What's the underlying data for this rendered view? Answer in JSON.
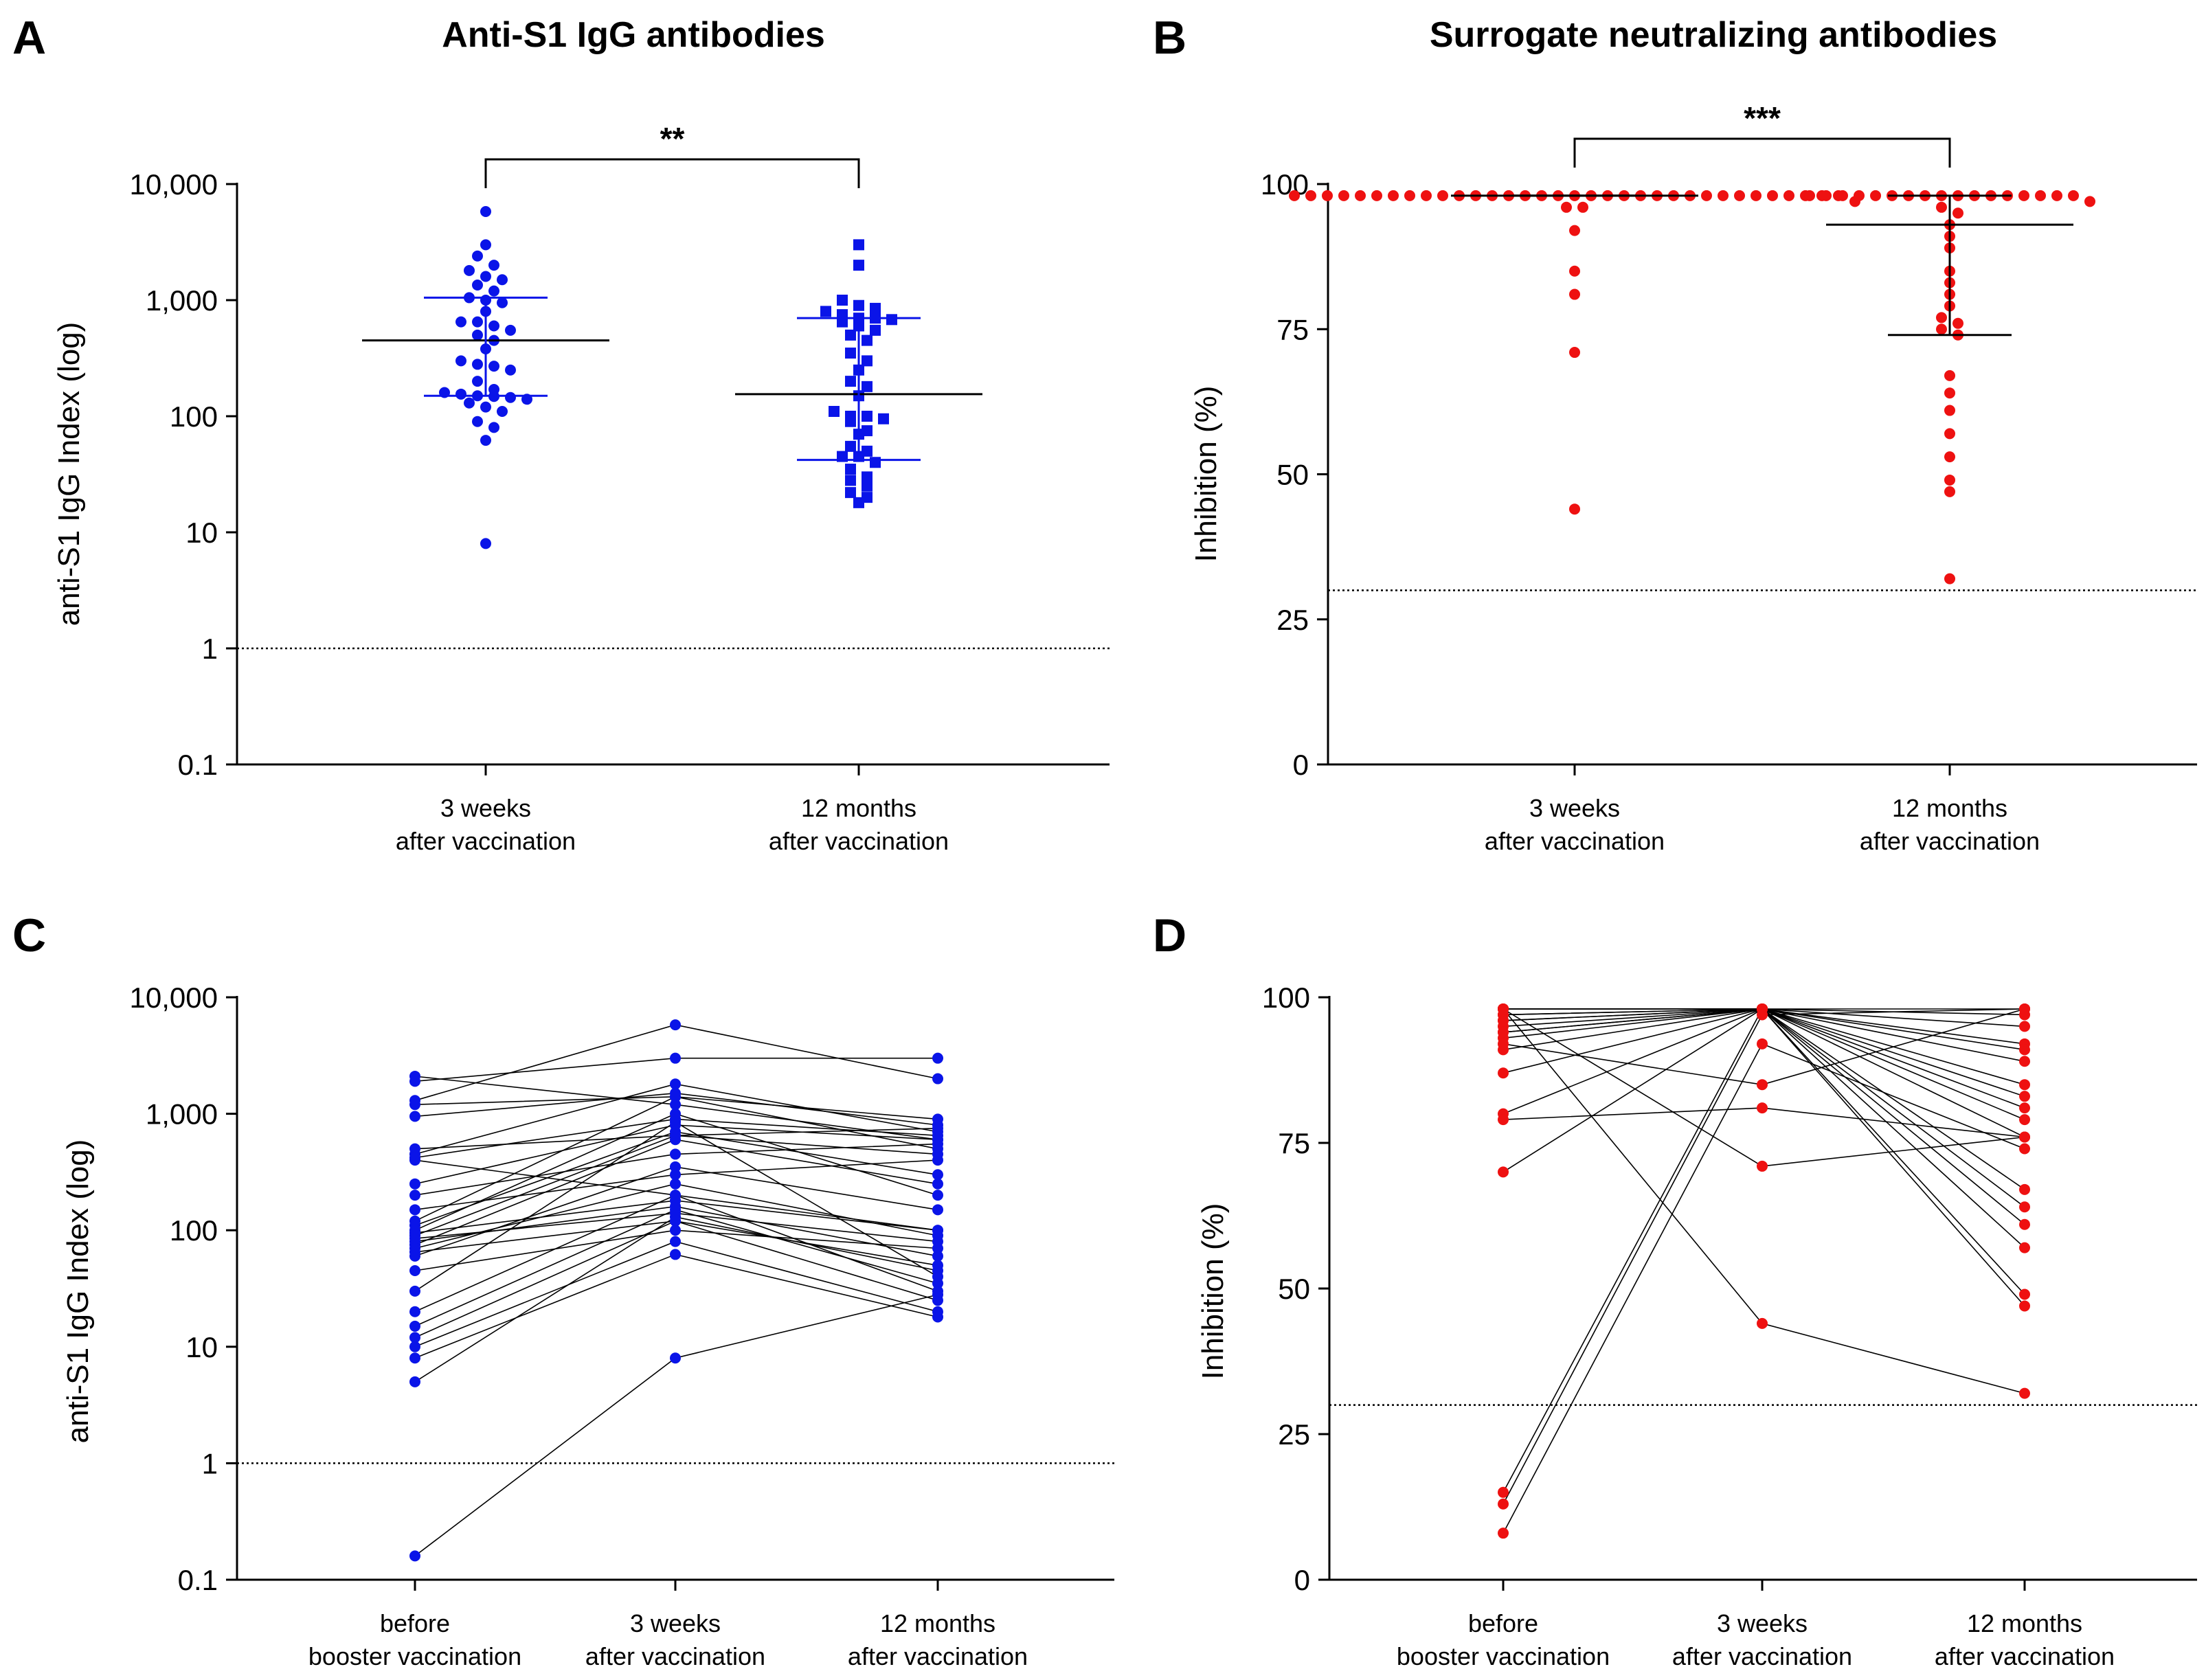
{
  "colors": {
    "blue": "#0a14e8",
    "red": "#ee1111",
    "black": "#000000"
  },
  "chart_data": [
    {
      "panel": "A",
      "type": "scatter",
      "title": "Anti-S1 IgG antibodies",
      "ylabel": "anti-S1 IgG Index (log)",
      "yscale": "log",
      "ylim": [
        0.1,
        10000
      ],
      "yticks": [
        0.1,
        1,
        10,
        100,
        1000,
        10000
      ],
      "ytick_labels": [
        "0.1",
        "1",
        "10",
        "100",
        "1,000",
        "10,000"
      ],
      "reference_line": 1,
      "significance": "**",
      "categories": [
        {
          "line1": "3 weeks",
          "line2": "after vaccination"
        },
        {
          "line1": "12 months",
          "line2": "after vaccination"
        }
      ],
      "series": [
        {
          "name": "3 weeks after vaccination",
          "marker": "circle",
          "color": "blue",
          "values": [
            5800,
            3000,
            2400,
            2000,
            1800,
            1600,
            1500,
            1350,
            1200,
            1050,
            1000,
            950,
            800,
            650,
            650,
            600,
            550,
            500,
            450,
            380,
            300,
            280,
            270,
            250,
            200,
            170,
            160,
            155,
            150,
            148,
            145,
            140,
            130,
            120,
            110,
            90,
            80,
            62,
            8
          ],
          "median": 450,
          "q1": 150,
          "q3": 1050
        },
        {
          "name": "12 months after vaccination",
          "marker": "square",
          "color": "blue",
          "values": [
            3000,
            2000,
            1000,
            900,
            850,
            800,
            750,
            700,
            700,
            680,
            650,
            600,
            550,
            500,
            450,
            350,
            300,
            250,
            200,
            180,
            150,
            110,
            100,
            100,
            95,
            90,
            75,
            70,
            55,
            50,
            45,
            45,
            40,
            35,
            30,
            28,
            25,
            22,
            20,
            18
          ],
          "median": 155,
          "q1": 42,
          "q3": 700
        }
      ]
    },
    {
      "panel": "B",
      "type": "scatter",
      "title": "Surrogate neutralizing antibodies",
      "ylabel": "Inhibition (%)",
      "yscale": "linear",
      "ylim": [
        0,
        100
      ],
      "yticks": [
        0,
        25,
        50,
        75,
        100
      ],
      "ytick_labels": [
        "0",
        "25",
        "50",
        "75",
        "100"
      ],
      "reference_line": 30,
      "significance": "***",
      "categories": [
        {
          "line1": "3 weeks",
          "line2": "after vaccination"
        },
        {
          "line1": "12 months",
          "line2": "after vaccination"
        }
      ],
      "series": [
        {
          "name": "3 weeks after vaccination",
          "marker": "circle",
          "color": "red",
          "values": [
            98,
            98,
            98,
            98,
            98,
            98,
            98,
            98,
            98,
            98,
            98,
            98,
            98,
            98,
            98,
            98,
            98,
            98,
            98,
            98,
            98,
            98,
            98,
            98,
            98,
            98,
            98,
            98,
            98,
            98,
            98,
            98,
            98,
            98,
            97,
            96,
            96,
            92,
            85,
            81,
            71,
            44
          ],
          "median": 98,
          "q1": 98,
          "q3": 98
        },
        {
          "name": "12 months after vaccination",
          "marker": "circle",
          "color": "red",
          "values": [
            98,
            98,
            98,
            98,
            98,
            98,
            98,
            98,
            98,
            98,
            98,
            98,
            98,
            98,
            98,
            98,
            98,
            97,
            96,
            95,
            93,
            91,
            89,
            85,
            83,
            81,
            79,
            77,
            76,
            75,
            74,
            67,
            64,
            61,
            57,
            53,
            49,
            47,
            32
          ],
          "median": 93,
          "q1": 74,
          "q3": 98
        }
      ]
    },
    {
      "panel": "C",
      "type": "line",
      "title": "",
      "ylabel": "anti-S1 IgG Index (log)",
      "yscale": "log",
      "ylim": [
        0.1,
        10000
      ],
      "yticks": [
        0.1,
        1,
        10,
        100,
        1000,
        10000
      ],
      "ytick_labels": [
        "0.1",
        "1",
        "10",
        "100",
        "1,000",
        "10,000"
      ],
      "reference_line": 1,
      "color": "blue",
      "categories": [
        {
          "line1": "before",
          "line2": "booster vaccination"
        },
        {
          "line1": "3 weeks",
          "line2": "after vaccination"
        },
        {
          "line1": "12 months",
          "line2": "after vaccination"
        }
      ],
      "subjects": [
        [
          2100,
          1200,
          600
        ],
        [
          1900,
          3000,
          3000
        ],
        [
          1300,
          5800,
          2000
        ],
        [
          1200,
          1400,
          900
        ],
        [
          950,
          1500,
          800
        ],
        [
          500,
          650,
          750
        ],
        [
          450,
          1800,
          700
        ],
        [
          420,
          900,
          650
        ],
        [
          400,
          200,
          100
        ],
        [
          250,
          800,
          600
        ],
        [
          200,
          450,
          550
        ],
        [
          150,
          300,
          400
        ],
        [
          120,
          1400,
          500
        ],
        [
          110,
          700,
          300
        ],
        [
          100,
          1000,
          200
        ],
        [
          95,
          180,
          100
        ],
        [
          90,
          650,
          450
        ],
        [
          85,
          140,
          80
        ],
        [
          80,
          160,
          60
        ],
        [
          75,
          600,
          250
        ],
        [
          70,
          250,
          90
        ],
        [
          65,
          120,
          50
        ],
        [
          60,
          350,
          150
        ],
        [
          45,
          100,
          70
        ],
        [
          30,
          850,
          40
        ],
        [
          20,
          200,
          30
        ],
        [
          15,
          150,
          35
        ],
        [
          12,
          120,
          25
        ],
        [
          10,
          80,
          20
        ],
        [
          8,
          62,
          18
        ],
        [
          5,
          130,
          45
        ],
        [
          0.16,
          8,
          28
        ]
      ]
    },
    {
      "panel": "D",
      "type": "line",
      "title": "",
      "ylabel": "Inhibition (%)",
      "yscale": "linear",
      "ylim": [
        0,
        100
      ],
      "yticks": [
        0,
        25,
        50,
        75,
        100
      ],
      "ytick_labels": [
        "0",
        "25",
        "50",
        "75",
        "100"
      ],
      "reference_line": 30,
      "color": "red",
      "categories": [
        {
          "line1": "before",
          "line2": "booster vaccination"
        },
        {
          "line1": "3 weeks",
          "line2": "after vaccination"
        },
        {
          "line1": "12 months",
          "line2": "after vaccination"
        }
      ],
      "subjects": [
        [
          98,
          98,
          98
        ],
        [
          98,
          98,
          97
        ],
        [
          97,
          98,
          95
        ],
        [
          96,
          98,
          92
        ],
        [
          94,
          98,
          89
        ],
        [
          93,
          98,
          85
        ],
        [
          91,
          98,
          81
        ],
        [
          87,
          98,
          79
        ],
        [
          80,
          98,
          76
        ],
        [
          79,
          81,
          76
        ],
        [
          70,
          98,
          83
        ],
        [
          98,
          98,
          67
        ],
        [
          97,
          98,
          64
        ],
        [
          96,
          98,
          61
        ],
        [
          95,
          98,
          57
        ],
        [
          94,
          98,
          49
        ],
        [
          92,
          85,
          98
        ],
        [
          98,
          98,
          47
        ],
        [
          98,
          71,
          76
        ],
        [
          98,
          44,
          32
        ],
        [
          15,
          98,
          91
        ],
        [
          13,
          97,
          98
        ],
        [
          8,
          92,
          74
        ]
      ]
    }
  ],
  "panels": [
    {
      "letter": "A",
      "title": "Anti-S1 IgG antibodies"
    },
    {
      "letter": "B",
      "title": "Surrogate neutralizing antibodies"
    },
    {
      "letter": "C",
      "title": ""
    },
    {
      "letter": "D",
      "title": ""
    }
  ]
}
